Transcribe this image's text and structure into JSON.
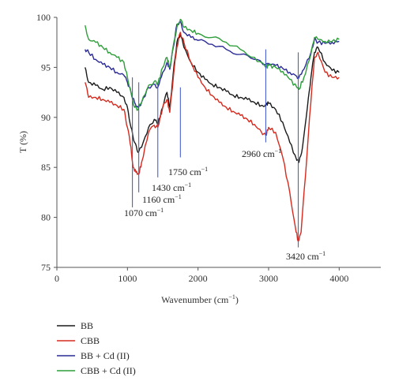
{
  "chart_data": {
    "type": "line",
    "xlabel": "Wavenumber (cm",
    "xlabel_sup": "−1",
    "xlabel_close": ")",
    "ylabel": "T (%)",
    "xlim": [
      0,
      4500
    ],
    "ylim": [
      75,
      100
    ],
    "x_ticks": [
      0,
      1000,
      2000,
      3000,
      4000
    ],
    "y_ticks": [
      75,
      80,
      85,
      90,
      95,
      100
    ],
    "grid": false,
    "legend_placement": "bottom-left, below plot",
    "series": [
      {
        "name": "BB",
        "color": "#1a1a1a",
        "points": [
          [
            400,
            95.0
          ],
          [
            450,
            93.5
          ],
          [
            550,
            93.2
          ],
          [
            650,
            92.8
          ],
          [
            750,
            93.0
          ],
          [
            850,
            92.5
          ],
          [
            950,
            92.0
          ],
          [
            1000,
            91.0
          ],
          [
            1050,
            89.0
          ],
          [
            1100,
            87.5
          ],
          [
            1150,
            86.5
          ],
          [
            1200,
            87.0
          ],
          [
            1300,
            89.0
          ],
          [
            1380,
            89.8
          ],
          [
            1430,
            89.3
          ],
          [
            1500,
            91.0
          ],
          [
            1560,
            92.5
          ],
          [
            1600,
            91.0
          ],
          [
            1650,
            94.5
          ],
          [
            1700,
            97.5
          ],
          [
            1750,
            98.3
          ],
          [
            1800,
            97.0
          ],
          [
            1900,
            95.5
          ],
          [
            2000,
            94.5
          ],
          [
            2100,
            93.8
          ],
          [
            2200,
            93.3
          ],
          [
            2300,
            93.0
          ],
          [
            2400,
            92.6
          ],
          [
            2500,
            92.2
          ],
          [
            2600,
            92.0
          ],
          [
            2700,
            91.8
          ],
          [
            2800,
            91.5
          ],
          [
            2900,
            91.2
          ],
          [
            2960,
            91.3
          ],
          [
            3000,
            91.4
          ],
          [
            3100,
            90.8
          ],
          [
            3200,
            89.5
          ],
          [
            3300,
            87.5
          ],
          [
            3400,
            85.7
          ],
          [
            3430,
            85.5
          ],
          [
            3480,
            87.0
          ],
          [
            3550,
            91.0
          ],
          [
            3600,
            94.0
          ],
          [
            3650,
            96.5
          ],
          [
            3700,
            97.0
          ],
          [
            3800,
            95.5
          ],
          [
            3900,
            94.7
          ],
          [
            4000,
            94.5
          ]
        ]
      },
      {
        "name": "CBB",
        "color": "#d62a1e",
        "points": [
          [
            400,
            93.5
          ],
          [
            450,
            92.0
          ],
          [
            550,
            92.0
          ],
          [
            650,
            91.8
          ],
          [
            750,
            91.5
          ],
          [
            850,
            91.2
          ],
          [
            950,
            90.8
          ],
          [
            1000,
            89.0
          ],
          [
            1050,
            87.0
          ],
          [
            1080,
            85.0
          ],
          [
            1120,
            84.5
          ],
          [
            1160,
            84.3
          ],
          [
            1200,
            85.5
          ],
          [
            1300,
            88.5
          ],
          [
            1380,
            89.2
          ],
          [
            1430,
            89.0
          ],
          [
            1500,
            91.0
          ],
          [
            1560,
            91.8
          ],
          [
            1600,
            90.5
          ],
          [
            1650,
            94.0
          ],
          [
            1700,
            97.0
          ],
          [
            1750,
            98.5
          ],
          [
            1800,
            97.5
          ],
          [
            1900,
            95.5
          ],
          [
            2000,
            94.0
          ],
          [
            2100,
            93.0
          ],
          [
            2200,
            92.2
          ],
          [
            2300,
            91.5
          ],
          [
            2400,
            91.0
          ],
          [
            2500,
            90.6
          ],
          [
            2600,
            90.2
          ],
          [
            2700,
            89.8
          ],
          [
            2800,
            89.3
          ],
          [
            2900,
            88.5
          ],
          [
            2960,
            88.2
          ],
          [
            3000,
            89.0
          ],
          [
            3100,
            88.5
          ],
          [
            3200,
            86.0
          ],
          [
            3300,
            82.5
          ],
          [
            3380,
            79.0
          ],
          [
            3420,
            77.6
          ],
          [
            3460,
            78.5
          ],
          [
            3520,
            84.0
          ],
          [
            3580,
            90.0
          ],
          [
            3650,
            96.0
          ],
          [
            3700,
            96.5
          ],
          [
            3800,
            94.5
          ],
          [
            3900,
            94.0
          ],
          [
            4000,
            94.0
          ]
        ]
      },
      {
        "name": "BB + Cd (II)",
        "color": "#2a2a96",
        "points": [
          [
            400,
            96.8
          ],
          [
            450,
            96.5
          ],
          [
            550,
            95.8
          ],
          [
            650,
            95.3
          ],
          [
            750,
            95.0
          ],
          [
            850,
            94.5
          ],
          [
            950,
            94.2
          ],
          [
            1000,
            93.5
          ],
          [
            1050,
            92.5
          ],
          [
            1100,
            91.5
          ],
          [
            1150,
            91.0
          ],
          [
            1200,
            91.5
          ],
          [
            1300,
            93.0
          ],
          [
            1380,
            93.3
          ],
          [
            1430,
            93.0
          ],
          [
            1500,
            94.5
          ],
          [
            1560,
            95.5
          ],
          [
            1600,
            94.8
          ],
          [
            1650,
            97.0
          ],
          [
            1700,
            99.3
          ],
          [
            1750,
            99.6
          ],
          [
            1800,
            98.5
          ],
          [
            1900,
            98.0
          ],
          [
            2000,
            97.7
          ],
          [
            2200,
            97.3
          ],
          [
            2400,
            96.8
          ],
          [
            2600,
            96.3
          ],
          [
            2800,
            95.8
          ],
          [
            2960,
            95.3
          ],
          [
            3000,
            95.4
          ],
          [
            3100,
            95.2
          ],
          [
            3200,
            94.9
          ],
          [
            3300,
            94.5
          ],
          [
            3400,
            94.1
          ],
          [
            3430,
            94.0
          ],
          [
            3500,
            94.8
          ],
          [
            3600,
            96.5
          ],
          [
            3650,
            97.8
          ],
          [
            3700,
            97.5
          ],
          [
            3800,
            97.4
          ],
          [
            3900,
            97.5
          ],
          [
            4000,
            97.6
          ]
        ]
      },
      {
        "name": "CBB + Cd (II)",
        "color": "#2e9e3a",
        "points": [
          [
            400,
            99.2
          ],
          [
            450,
            97.8
          ],
          [
            550,
            97.5
          ],
          [
            650,
            97.0
          ],
          [
            750,
            96.5
          ],
          [
            850,
            96.0
          ],
          [
            950,
            95.5
          ],
          [
            1000,
            94.0
          ],
          [
            1050,
            92.5
          ],
          [
            1100,
            91.0
          ],
          [
            1150,
            90.8
          ],
          [
            1200,
            91.5
          ],
          [
            1300,
            93.2
          ],
          [
            1380,
            93.6
          ],
          [
            1430,
            93.3
          ],
          [
            1500,
            95.0
          ],
          [
            1560,
            96.0
          ],
          [
            1600,
            95.0
          ],
          [
            1650,
            97.2
          ],
          [
            1700,
            99.0
          ],
          [
            1750,
            99.8
          ],
          [
            1800,
            99.0
          ],
          [
            1900,
            98.7
          ],
          [
            2000,
            98.4
          ],
          [
            2200,
            98.0
          ],
          [
            2400,
            97.5
          ],
          [
            2600,
            96.8
          ],
          [
            2800,
            96.0
          ],
          [
            2960,
            95.0
          ],
          [
            3000,
            95.2
          ],
          [
            3100,
            95.0
          ],
          [
            3200,
            94.6
          ],
          [
            3300,
            93.8
          ],
          [
            3400,
            93.0
          ],
          [
            3430,
            92.8
          ],
          [
            3500,
            94.0
          ],
          [
            3600,
            96.3
          ],
          [
            3650,
            98.0
          ],
          [
            3700,
            97.8
          ],
          [
            3800,
            97.6
          ],
          [
            3900,
            97.6
          ],
          [
            4000,
            97.8
          ]
        ]
      }
    ],
    "markers": [
      {
        "x": 1070,
        "y_top": 94.0,
        "y_bottom": 81.0,
        "label": "1070 cm",
        "sup": "−1"
      },
      {
        "x": 1160,
        "y_top": 93.5,
        "y_bottom": 82.5,
        "label": "1160 cm",
        "sup": "−1"
      },
      {
        "x": 1430,
        "y_top": 93.5,
        "y_bottom": 84.0,
        "label": "1430 cm",
        "sup": "−1"
      },
      {
        "x": 1750,
        "y_top": 93.0,
        "y_bottom": 86.0,
        "label": "1750 cm",
        "sup": "−1"
      },
      {
        "x": 2960,
        "y_top": 96.8,
        "y_bottom": 87.5,
        "label": "2960 cm",
        "sup": "−1"
      },
      {
        "x": 3420,
        "y_top": 96.5,
        "y_bottom": 77.0,
        "label": "3420 cm",
        "sup": "−1"
      }
    ]
  }
}
